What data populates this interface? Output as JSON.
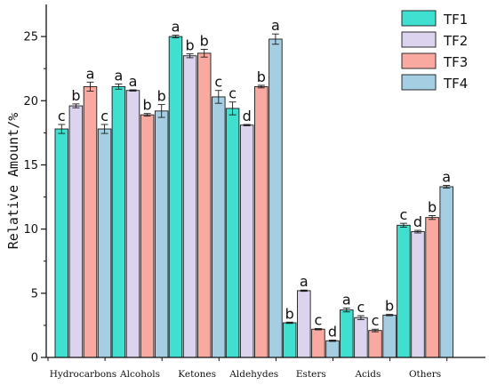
{
  "chart_data": {
    "type": "bar",
    "title": "",
    "xlabel": "",
    "ylabel": "Relative Amount/%",
    "ylim": [
      0,
      27.5
    ],
    "yticks": [
      0,
      5,
      10,
      15,
      20,
      25
    ],
    "grid": false,
    "legend_position": "top-right",
    "categories": [
      "Hydrocarbons",
      "Alcohols",
      "Ketones",
      "Aldehydes",
      "Esters",
      "Acids",
      "Others"
    ],
    "series": [
      {
        "name": "TF1",
        "color": "#3fe0d0",
        "values": [
          17.8,
          21.1,
          25.0,
          19.4,
          2.7,
          3.7,
          10.3
        ],
        "errors": [
          0.35,
          0.2,
          0.1,
          0.5,
          0.05,
          0.15,
          0.15
        ],
        "labels": [
          "c",
          "a",
          "a",
          "c",
          "b",
          "a",
          "c"
        ]
      },
      {
        "name": "TF2",
        "color": "#dcd4ee",
        "values": [
          19.6,
          20.8,
          23.5,
          18.1,
          5.2,
          3.1,
          9.8
        ],
        "errors": [
          0.15,
          0.05,
          0.15,
          0.05,
          0.05,
          0.15,
          0.1
        ],
        "labels": [
          "b",
          "a",
          "b",
          "d",
          "a",
          "c",
          "d"
        ]
      },
      {
        "name": "TF3",
        "color": "#f9a9a0",
        "values": [
          21.1,
          18.9,
          23.7,
          21.1,
          2.2,
          2.1,
          10.9
        ],
        "errors": [
          0.35,
          0.1,
          0.3,
          0.1,
          0.05,
          0.1,
          0.15
        ],
        "labels": [
          "a",
          "b",
          "b",
          "b",
          "c",
          "c",
          "b"
        ]
      },
      {
        "name": "TF4",
        "color": "#a6cee3",
        "values": [
          17.8,
          19.2,
          20.3,
          24.8,
          1.3,
          3.3,
          13.3
        ],
        "errors": [
          0.35,
          0.5,
          0.5,
          0.4,
          0.05,
          0.05,
          0.1
        ],
        "labels": [
          "c",
          "b",
          "c",
          "a",
          "d",
          "b",
          "a"
        ]
      }
    ]
  }
}
